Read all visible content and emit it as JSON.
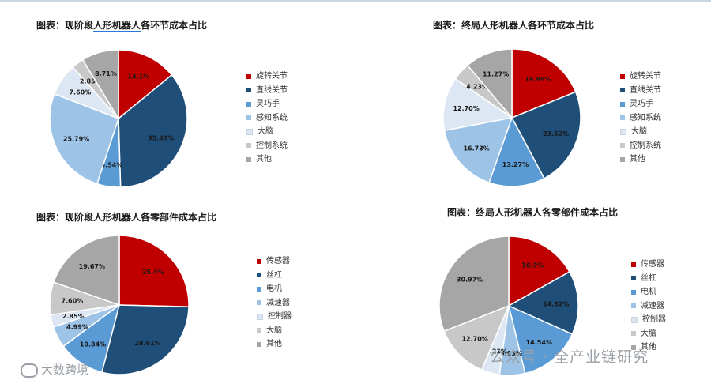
{
  "charts": [
    {
      "title": "图表：现阶段人形机器人各环节成本占比",
      "type": "pie",
      "labels": [
        "旋转关节",
        "直线关节",
        "灵巧手",
        "感知系统",
        "大脑",
        "控制系统",
        "其他"
      ],
      "values": [
        14.1,
        35.43,
        5.54,
        25.79,
        7.6,
        2.85,
        8.71
      ],
      "value_labels": [
        "14.1%",
        "35.43%",
        "5.54%",
        "25.79%",
        "7.60%",
        "2.85%",
        "8.71%"
      ],
      "colors": [
        "#c00000",
        "#1f4e79",
        "#5b9bd5",
        "#9dc3e6",
        "#dde7f3",
        "#c8c8c8",
        "#a6a6a6"
      ]
    },
    {
      "title": "图表：终局人形机器人各环节成本占比",
      "type": "pie",
      "labels": [
        "旋转关节",
        "直线关节",
        "灵巧手",
        "感知系统",
        "大脑",
        "控制系统",
        "其他"
      ],
      "values": [
        18.99,
        23.52,
        13.27,
        16.73,
        12.7,
        4.23,
        11.27
      ],
      "value_labels": [
        "18.99%",
        "23.52%",
        "13.27%",
        "16.73%",
        "12.70%",
        "4.23%",
        "11.27%"
      ],
      "colors": [
        "#c00000",
        "#1f4e79",
        "#5b9bd5",
        "#9dc3e6",
        "#dde7f3",
        "#c8c8c8",
        "#a6a6a6"
      ]
    },
    {
      "title": "图表：现阶段人形机器人各零部件成本占比",
      "type": "pie",
      "labels": [
        "传感器",
        "丝杠",
        "电机",
        "减速器",
        "控制器",
        "大脑",
        "其他"
      ],
      "values": [
        25.4,
        28.61,
        10.84,
        4.99,
        2.85,
        7.6,
        19.67
      ],
      "value_labels": [
        "25.4%",
        "28.61%",
        "10.84%",
        "4.99%",
        "2.85%",
        "7.60%",
        "19.67%"
      ],
      "colors": [
        "#c00000",
        "#1f4e79",
        "#5b9bd5",
        "#9dc3e6",
        "#dde7f3",
        "#c8c8c8",
        "#a6a6a6"
      ]
    },
    {
      "title": "图表：终局人形机器人各零部件成本占比",
      "type": "pie",
      "labels": [
        "传感器",
        "丝杠",
        "电机",
        "减速器",
        "控制器",
        "大脑",
        "其他"
      ],
      "values": [
        16.9,
        14.82,
        14.54,
        5.93,
        4.23,
        12.7,
        30.97
      ],
      "value_labels": [
        "16.9%",
        "14.82%",
        "14.54%",
        "5.93%",
        "4.23%",
        "12.70%",
        "30.97%"
      ],
      "colors": [
        "#c00000",
        "#1f4e79",
        "#5b9bd5",
        "#9dc3e6",
        "#dde7f3",
        "#c8c8c8",
        "#a6a6a6"
      ]
    }
  ],
  "chart_data": [
    {
      "type": "pie",
      "title": "图表：现阶段人形机器人各环节成本占比",
      "labels": [
        "旋转关节",
        "直线关节",
        "灵巧手",
        "感知系统",
        "大脑",
        "控制系统",
        "其他"
      ],
      "values": [
        14.1,
        35.43,
        5.54,
        25.79,
        7.6,
        2.85,
        8.71
      ],
      "legend": "right"
    },
    {
      "type": "pie",
      "title": "图表：终局人形机器人各环节成本占比",
      "labels": [
        "旋转关节",
        "直线关节",
        "灵巧手",
        "感知系统",
        "大脑",
        "控制系统",
        "其他"
      ],
      "values": [
        18.99,
        23.52,
        13.27,
        16.73,
        12.7,
        4.23,
        11.27
      ],
      "legend": "right"
    },
    {
      "type": "pie",
      "title": "图表：现阶段人形机器人各零部件成本占比",
      "labels": [
        "传感器",
        "丝杠",
        "电机",
        "减速器",
        "控制器",
        "大脑",
        "其他"
      ],
      "values": [
        25.4,
        28.61,
        10.84,
        4.99,
        2.85,
        7.6,
        19.67
      ],
      "legend": "right"
    },
    {
      "type": "pie",
      "title": "图表：终局人形机器人各零部件成本占比",
      "labels": [
        "传感器",
        "丝杠",
        "电机",
        "减速器",
        "控制器",
        "大脑",
        "其他"
      ],
      "values": [
        16.9,
        14.82,
        14.54,
        5.93,
        4.23,
        12.7,
        30.97
      ],
      "legend": "right"
    }
  ],
  "watermarks": {
    "left": "大数跨境",
    "right": "公众号 · 全产业链研究"
  }
}
